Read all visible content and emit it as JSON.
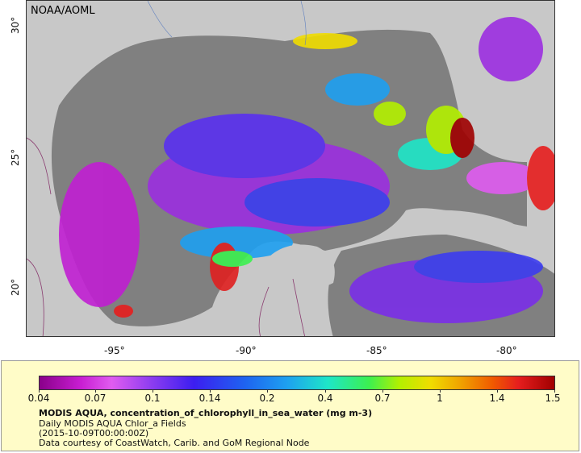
{
  "map": {
    "agency": "NOAA/AOML",
    "lon_labels": [
      "-95°",
      "-90°",
      "-85°",
      "-80°"
    ],
    "lat_labels": [
      "30°",
      "25°",
      "20°"
    ]
  },
  "legend": {
    "colorbar_ticks": [
      "0.04",
      "0.07",
      "0.1",
      "0.14",
      "0.2",
      "0.4",
      "0.7",
      "1",
      "1.4",
      "1.5"
    ],
    "title": "MODIS AQUA, concentration_of_chlorophyll_in_sea_water (mg m-3)",
    "line1": "Daily MODIS AQUA Chlor_a Fields",
    "line2": "(2015-10-09T00:00:00Z)",
    "line3": "Data courtesy of CoastWatch, Carib. and GoM Regional Node"
  },
  "colors": {
    "land": "#c8c8c8",
    "nodata_ocean": "#808080",
    "legend_background": "#fffcc8",
    "coastline": "#8a3c70"
  }
}
